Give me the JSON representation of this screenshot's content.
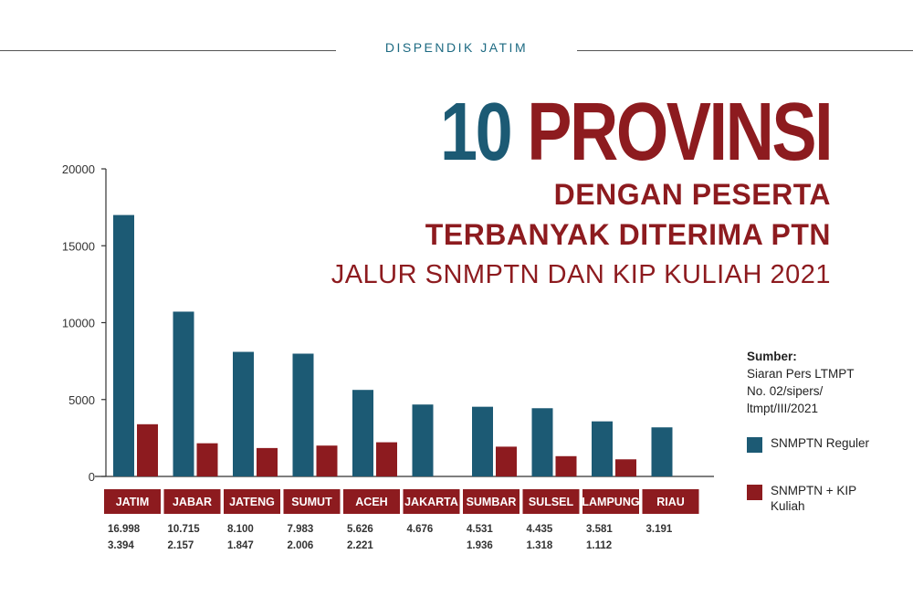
{
  "header": {
    "publisher": "DISPENDIK JATIM"
  },
  "title": {
    "number": "10",
    "word": "PROVINSI",
    "line2": "DENGAN PESERTA",
    "line3": "TERBANYAK DITERIMA PTN",
    "line4": "JALUR SNMPTN DAN KIP KULIAH 2021"
  },
  "source": {
    "label": "Sumber:",
    "lines": [
      "Siaran Pers LTMPT",
      "No. 02/sipers/",
      "ltmpt/III/2021"
    ]
  },
  "colors": {
    "series1": "#1c5a74",
    "series2": "#8d1b1f",
    "category_bg": "#8d1b1f"
  },
  "chart_data": {
    "type": "bar",
    "categories": [
      "JATIM",
      "JABAR",
      "JATENG",
      "SUMUT",
      "ACEH",
      "JAKARTA",
      "SUMBAR",
      "SULSEL",
      "LAMPUNG",
      "RIAU"
    ],
    "series": [
      {
        "name": "SNMPTN Reguler",
        "values": [
          16998,
          10715,
          8100,
          7983,
          5626,
          4676,
          4531,
          4435,
          3581,
          3191
        ],
        "labels": [
          "16.998",
          "10.715",
          "8.100",
          "7.983",
          "5.626",
          "4.676",
          "4.531",
          "4.435",
          "3.581",
          "3.191"
        ]
      },
      {
        "name": "SNMPTN + KIP Kuliah",
        "values": [
          3394,
          2157,
          1847,
          2006,
          2221,
          null,
          1936,
          1318,
          1112,
          null
        ],
        "labels": [
          "3.394",
          "2.157",
          "1.847",
          "2.006",
          "2.221",
          "",
          "1.936",
          "1.318",
          "1.112",
          ""
        ]
      }
    ],
    "ylim": [
      0,
      20000
    ],
    "yticks": [
      0,
      5000,
      10000,
      15000,
      20000
    ],
    "ytick_labels": [
      "0",
      "5000",
      "10000",
      "15000",
      "20000"
    ],
    "legend": "right",
    "grid": false
  }
}
